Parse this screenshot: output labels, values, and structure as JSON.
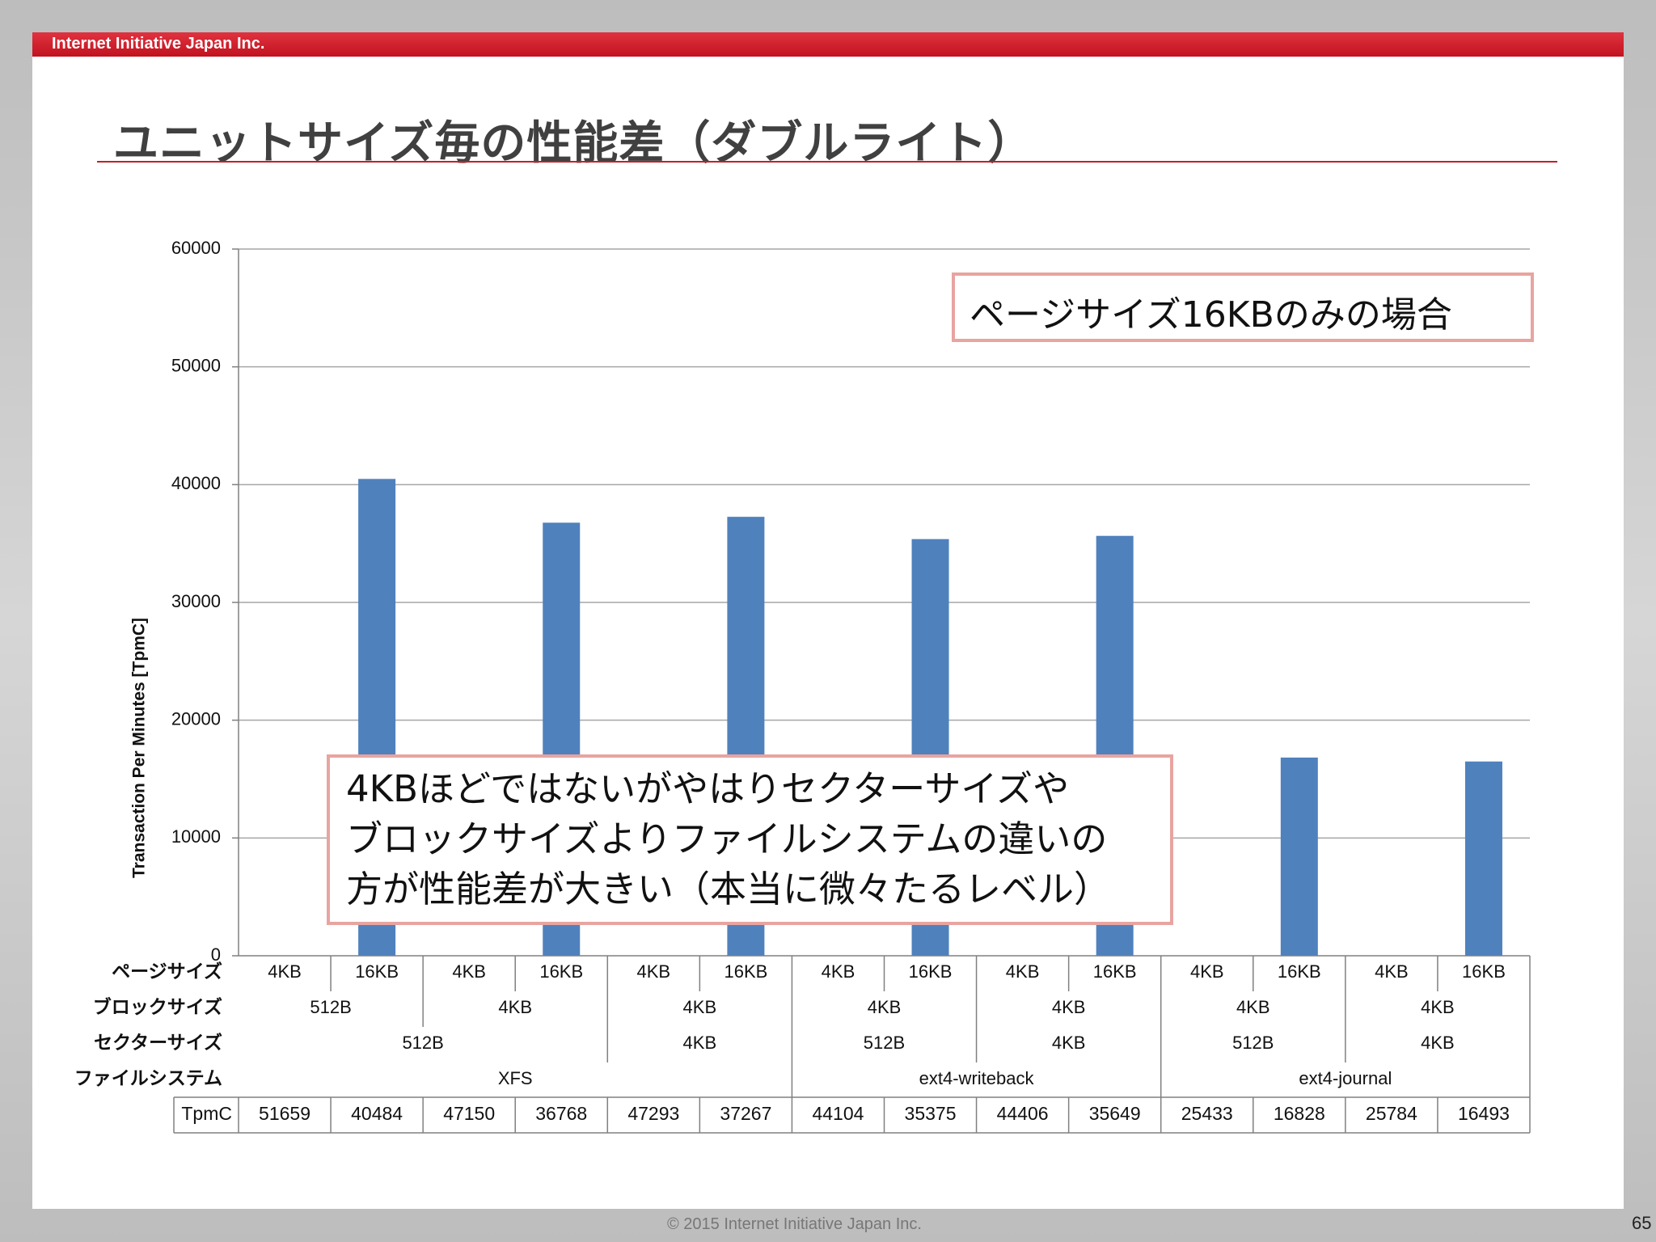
{
  "header": {
    "company": "Internet Initiative Japan Inc."
  },
  "title": "ユニットサイズ毎の性能差（ダブルライト）",
  "notes": {
    "top": "ページサイズ16KBのみの場合",
    "body": [
      "4KBほどではないがやはりセクターサイズや",
      "ブロックサイズよりファイルシステムの違いの",
      "方が性能差が大きい（本当に微々たるレベル）"
    ]
  },
  "footer": {
    "copyright": "© 2015  Internet Initiative Japan Inc.",
    "page_number": "65"
  },
  "chart_data": {
    "type": "bar",
    "ylabel": "Transaction Per Minutes [TpmC]",
    "ylim": [
      0,
      60000
    ],
    "yticks": [
      0,
      10000,
      20000,
      30000,
      40000,
      50000,
      60000
    ],
    "grid": true,
    "series_color": "#4f81bd",
    "row_labels": [
      "ページサイズ",
      "ブロックサイズ",
      "セクターサイズ",
      "ファイルシステム",
      "TpmC"
    ],
    "categories": [
      {
        "page": "4KB",
        "block": "512B",
        "sector": "512B",
        "fs": "XFS"
      },
      {
        "page": "16KB",
        "block": "512B",
        "sector": "512B",
        "fs": "XFS"
      },
      {
        "page": "4KB",
        "block": "4KB",
        "sector": "512B",
        "fs": "XFS"
      },
      {
        "page": "16KB",
        "block": "4KB",
        "sector": "512B",
        "fs": "XFS"
      },
      {
        "page": "4KB",
        "block": "4KB",
        "sector": "4KB",
        "fs": "XFS"
      },
      {
        "page": "16KB",
        "block": "4KB",
        "sector": "4KB",
        "fs": "XFS"
      },
      {
        "page": "4KB",
        "block": "4KB",
        "sector": "512B",
        "fs": "ext4-writeback"
      },
      {
        "page": "16KB",
        "block": "4KB",
        "sector": "512B",
        "fs": "ext4-writeback"
      },
      {
        "page": "4KB",
        "block": "4KB",
        "sector": "4KB",
        "fs": "ext4-writeback"
      },
      {
        "page": "16KB",
        "block": "4KB",
        "sector": "4KB",
        "fs": "ext4-writeback"
      },
      {
        "page": "4KB",
        "block": "4KB",
        "sector": "512B",
        "fs": "ext4-journal"
      },
      {
        "page": "16KB",
        "block": "4KB",
        "sector": "512B",
        "fs": "ext4-journal"
      },
      {
        "page": "4KB",
        "block": "4KB",
        "sector": "4KB",
        "fs": "ext4-journal"
      },
      {
        "page": "16KB",
        "block": "4KB",
        "sector": "4KB",
        "fs": "ext4-journal"
      }
    ],
    "tpmc": [
      51659,
      40484,
      47150,
      36768,
      47293,
      37267,
      44104,
      35375,
      44406,
      35649,
      25433,
      16828,
      25784,
      16493
    ],
    "bars_plotted_for_page": "16KB",
    "block_groups": [
      {
        "label": "512B",
        "span": 2
      },
      {
        "label": "4KB",
        "span": 2
      },
      {
        "label": "4KB",
        "span": 2
      },
      {
        "label": "4KB",
        "span": 2
      },
      {
        "label": "4KB",
        "span": 2
      },
      {
        "label": "4KB",
        "span": 2
      },
      {
        "label": "4KB",
        "span": 2
      }
    ],
    "sector_groups": [
      {
        "label": "512B",
        "span": 4
      },
      {
        "label": "4KB",
        "span": 2
      },
      {
        "label": "512B",
        "span": 2
      },
      {
        "label": "4KB",
        "span": 2
      },
      {
        "label": "512B",
        "span": 2
      },
      {
        "label": "4KB",
        "span": 2
      }
    ],
    "fs_groups": [
      {
        "label": "XFS",
        "span": 6
      },
      {
        "label": "ext4-writeback",
        "span": 4
      },
      {
        "label": "ext4-journal",
        "span": 4
      }
    ]
  }
}
